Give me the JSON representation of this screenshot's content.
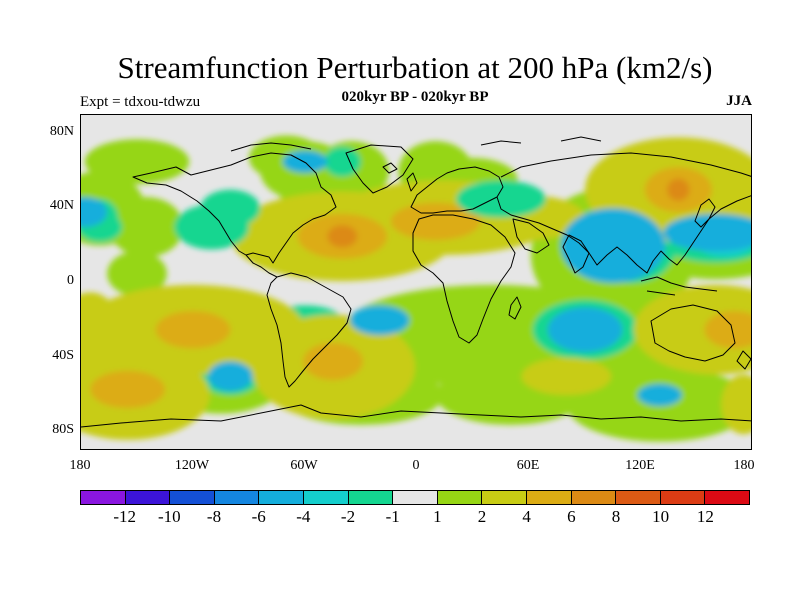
{
  "title": "Streamfunction Perturbation at 200 hPa (km2/s)",
  "subtitle": "020kyr BP - 020kyr BP",
  "experiment": "Expt = tdxou-tdwzu",
  "season": "JJA",
  "map": {
    "background_color": "#e6e6e6",
    "lat_ticks": [
      "80N",
      "40N",
      "0",
      "40S",
      "80S"
    ],
    "lon_ticks": [
      "180",
      "120W",
      "60W",
      "0",
      "60E",
      "120E",
      "180"
    ],
    "coastline_color": "#000000",
    "anomalies": [
      {
        "lon": -150,
        "lat": 65,
        "rlon": 14,
        "rlat": 6,
        "level": 2
      },
      {
        "lon": -70,
        "lat": 67,
        "rlon": 10,
        "rlat": 6,
        "level": 2
      },
      {
        "lon": -45,
        "lat": 45,
        "rlon": 14,
        "rlat": 8,
        "level": 2
      },
      {
        "lon": -170,
        "lat": 40,
        "rlon": 12,
        "rlat": 10,
        "level": 2
      },
      {
        "lon": -145,
        "lat": 30,
        "rlon": 10,
        "rlat": 8,
        "level": 2
      },
      {
        "lon": -150,
        "lat": 5,
        "rlon": 8,
        "rlat": 6,
        "level": 2
      },
      {
        "lon": -35,
        "lat": 60,
        "rlon": 10,
        "rlat": 8,
        "level": 2
      },
      {
        "lon": 30,
        "lat": 55,
        "rlon": 12,
        "rlat": 6,
        "level": 2
      },
      {
        "lon": 10,
        "lat": 60,
        "rlon": 10,
        "rlat": 8,
        "level": 2
      },
      {
        "lon": -60,
        "lat": 60,
        "rlon": 12,
        "rlat": 8,
        "level": 2
      },
      {
        "lon": 105,
        "lat": 15,
        "rlon": 22,
        "rlat": 18,
        "level": 2
      },
      {
        "lon": 160,
        "lat": 30,
        "rlon": 26,
        "rlat": 14,
        "level": 2
      },
      {
        "lon": 40,
        "lat": -25,
        "rlon": 40,
        "rlat": 12,
        "level": 2
      },
      {
        "lon": 95,
        "lat": -30,
        "rlon": 24,
        "rlat": 14,
        "level": 2
      },
      {
        "lon": 15,
        "lat": -38,
        "rlon": 22,
        "rlat": 8,
        "level": 2
      },
      {
        "lon": 130,
        "lat": -65,
        "rlon": 25,
        "rlat": 10,
        "level": 2
      },
      {
        "lon": -105,
        "lat": -50,
        "rlon": 18,
        "rlat": 10,
        "level": 2
      },
      {
        "lon": -30,
        "lat": -60,
        "rlon": 22,
        "rlat": 8,
        "level": 2
      },
      {
        "lon": 90,
        "lat": -55,
        "rlon": 18,
        "rlat": 6,
        "level": 2
      },
      {
        "lon": -140,
        "lat": -60,
        "rlon": 12,
        "rlat": 10,
        "level": 2
      },
      {
        "lon": -175,
        "lat": -30,
        "rlon": 10,
        "rlat": 10,
        "level": 2
      },
      {
        "lon": -20,
        "lat": -35,
        "rlon": 16,
        "rlat": 8,
        "level": 2
      },
      {
        "lon": 50,
        "lat": -60,
        "rlon": 20,
        "rlat": 8,
        "level": 2
      },
      {
        "lon": -170,
        "lat": 30,
        "rlon": 6,
        "rlat": 4,
        "level": 3
      },
      {
        "lon": 115,
        "lat": 20,
        "rlon": 12,
        "rlat": 10,
        "level": 3
      },
      {
        "lon": 160,
        "lat": 25,
        "rlon": 16,
        "rlat": 7,
        "level": 3
      },
      {
        "lon": 90,
        "lat": -25,
        "rlon": 14,
        "rlat": 8,
        "level": 3
      },
      {
        "lon": -100,
        "lat": -50,
        "rlon": 8,
        "rlat": 5,
        "level": 3
      },
      {
        "lon": -40,
        "lat": 65,
        "rlon": 5,
        "rlat": 4,
        "level": 3
      },
      {
        "lon": -60,
        "lat": -20,
        "rlon": 10,
        "rlat": 4,
        "level": 3
      },
      {
        "lon": 165,
        "lat": 22,
        "rlon": 8,
        "rlat": 4,
        "level": 4
      },
      {
        "lon": -40,
        "lat": 25,
        "rlon": 30,
        "rlat": 12,
        "level": 6
      },
      {
        "lon": 15,
        "lat": 35,
        "rlon": 30,
        "rlat": 10,
        "level": 6
      },
      {
        "lon": 140,
        "lat": 50,
        "rlon": 25,
        "rlat": 14,
        "level": 6
      },
      {
        "lon": 60,
        "lat": 35,
        "rlon": 15,
        "rlat": 6,
        "level": 6
      },
      {
        "lon": -120,
        "lat": -25,
        "rlon": 30,
        "rlat": 12,
        "level": 6
      },
      {
        "lon": -155,
        "lat": -60,
        "rlon": 22,
        "rlat": 12,
        "level": 6
      },
      {
        "lon": -45,
        "lat": -45,
        "rlon": 22,
        "rlat": 14,
        "level": 6
      },
      {
        "lon": 160,
        "lat": -25,
        "rlon": 22,
        "rlat": 12,
        "level": 6
      },
      {
        "lon": 80,
        "lat": -50,
        "rlon": 12,
        "rlat": 5,
        "level": 6
      },
      {
        "lon": -175,
        "lat": -25,
        "rlon": 8,
        "rlat": 10,
        "level": 6
      },
      {
        "lon": 175,
        "lat": -65,
        "rlon": 6,
        "rlat": 8,
        "level": 6
      },
      {
        "lon": -40,
        "lat": 25,
        "rlon": 12,
        "rlat": 6,
        "level": 7
      },
      {
        "lon": 10,
        "lat": 33,
        "rlon": 12,
        "rlat": 5,
        "level": 7
      },
      {
        "lon": 140,
        "lat": 50,
        "rlon": 9,
        "rlat": 6,
        "level": 7
      },
      {
        "lon": -120,
        "lat": -25,
        "rlon": 10,
        "rlat": 5,
        "level": 7
      },
      {
        "lon": -155,
        "lat": -57,
        "rlon": 10,
        "rlat": 5,
        "level": 7
      },
      {
        "lon": -45,
        "lat": -42,
        "rlon": 8,
        "rlat": 5,
        "level": 7
      },
      {
        "lon": 170,
        "lat": -25,
        "rlon": 8,
        "rlat": 5,
        "level": 7
      },
      {
        "lon": -40,
        "lat": 25,
        "rlon": 4,
        "rlat": 3,
        "level": 8
      },
      {
        "lon": 140,
        "lat": 50,
        "rlon": 3,
        "rlat": 3,
        "level": 8
      }
    ],
    "negatives": [
      {
        "lon": -170,
        "lat": 35,
        "rlon": 5,
        "rlat": 5,
        "level": 2
      },
      {
        "lon": -100,
        "lat": 40,
        "rlon": 8,
        "rlat": 5,
        "level": 2
      },
      {
        "lon": -110,
        "lat": 30,
        "rlon": 10,
        "rlat": 6,
        "level": 2
      },
      {
        "lon": 45,
        "lat": 45,
        "rlon": 12,
        "rlat": 5,
        "level": 2
      },
      {
        "lon": 105,
        "lat": 20,
        "rlon": 14,
        "rlat": 10,
        "level": 4
      },
      {
        "lon": 160,
        "lat": 27,
        "rlon": 14,
        "rlat": 5,
        "level": 4
      },
      {
        "lon": 90,
        "lat": -25,
        "rlon": 10,
        "rlat": 6,
        "level": 4
      },
      {
        "lon": -100,
        "lat": -50,
        "rlon": 6,
        "rlat": 4,
        "level": 4
      },
      {
        "lon": -20,
        "lat": -20,
        "rlon": 8,
        "rlat": 4,
        "level": 4
      },
      {
        "lon": 130,
        "lat": -60,
        "rlon": 6,
        "rlat": 3,
        "level": 4
      },
      {
        "lon": -60,
        "lat": 65,
        "rlon": 6,
        "rlat": 3,
        "level": 4
      },
      {
        "lon": -178,
        "lat": 38,
        "rlon": 6,
        "rlat": 4,
        "level": 4
      }
    ]
  },
  "colorbar": {
    "colors": [
      "#8a16e0",
      "#3c14d8",
      "#1450d6",
      "#1486e0",
      "#14aedc",
      "#14cecc",
      "#14d690",
      "#e6e6e6",
      "#96d614",
      "#c8cc14",
      "#dcac14",
      "#dc8a14",
      "#dc5a14",
      "#dc3c14",
      "#dc0a14"
    ],
    "labels": [
      "-12",
      "-10",
      "-8",
      "-6",
      "-4",
      "-2",
      "-1",
      "1",
      "2",
      "4",
      "6",
      "8",
      "10",
      "12"
    ]
  }
}
